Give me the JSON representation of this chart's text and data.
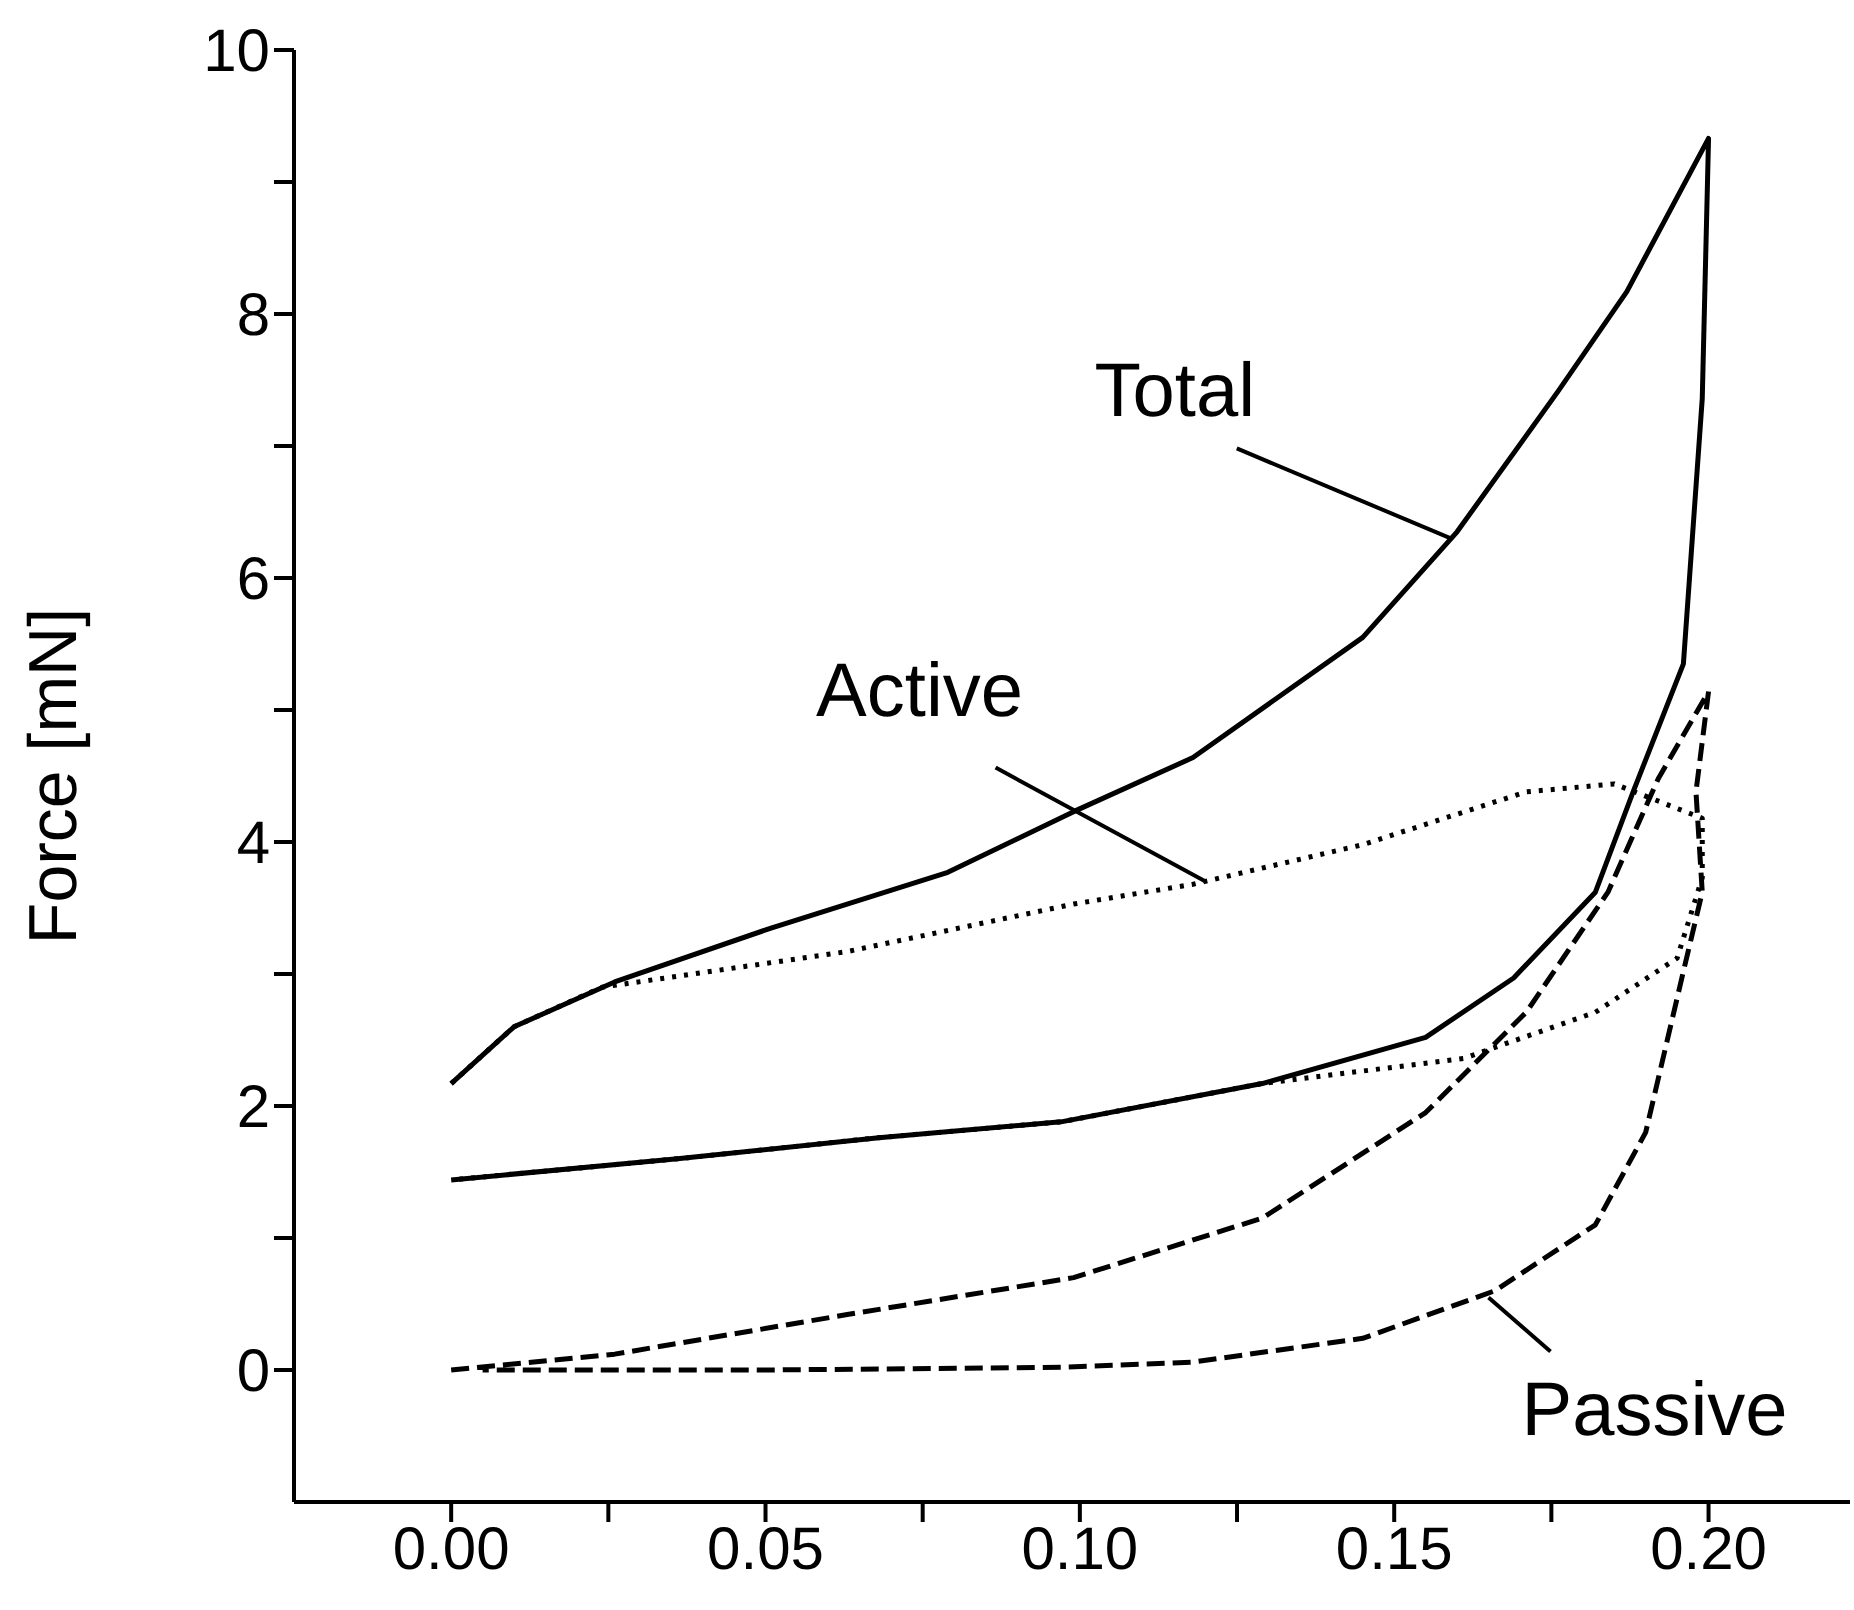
{
  "chart_data": {
    "type": "line",
    "ylabel": "Force [mN]",
    "xlim": [
      -0.025,
      0.2225
    ],
    "xticks": [
      {
        "value": 0,
        "label": "0.00"
      },
      {
        "value": 0.025,
        "label": null
      },
      {
        "value": 0.05,
        "label": "0.05"
      },
      {
        "value": 0.075,
        "label": null
      },
      {
        "value": 0.1,
        "label": "0.10"
      },
      {
        "value": 0.125,
        "label": null
      },
      {
        "value": 0.15,
        "label": "0.15"
      },
      {
        "value": 0.175,
        "label": null
      },
      {
        "value": 0.2,
        "label": "0.20"
      }
    ],
    "ylim": [
      -1,
      10
    ],
    "yticks": [
      0,
      {
        "value": 1,
        "label": null
      },
      2,
      {
        "value": 3,
        "label": null
      },
      4,
      {
        "value": 5,
        "label": null
      },
      6,
      {
        "value": 7,
        "label": null
      },
      8,
      {
        "value": 9,
        "label": null
      },
      10
    ],
    "grid": false,
    "legend": false,
    "marker": "none",
    "series": [
      {
        "color": "#000000",
        "line_style": "solid",
        "x": [
          0,
          0.01,
          0.026,
          0.051,
          0.079,
          0.099,
          0.118,
          0.145,
          0.16,
          0.176,
          0.187,
          0.2,
          0.199,
          0.196,
          0.188,
          0.182,
          0.169,
          0.155,
          0.129,
          0.097,
          0.068,
          0.036,
          0
        ],
        "values": [
          2.17,
          2.6,
          2.94,
          3.35,
          3.77,
          4.23,
          4.64,
          5.55,
          6.35,
          7.41,
          8.17,
          9.33,
          7.36,
          5.35,
          4.38,
          3.62,
          2.97,
          2.52,
          2.17,
          1.88,
          1.76,
          1.6,
          1.44
        ]
      },
      {
        "color": "#000000",
        "line_style": "dotted",
        "x": [
          0,
          0.01,
          0.024,
          0.063,
          0.099,
          0.118,
          0.145,
          0.171,
          0.185,
          0.199,
          0.199,
          0.195,
          0.182,
          0.161,
          0.129,
          0.097,
          0.068,
          0.036,
          0
        ],
        "values": [
          2.17,
          2.6,
          2.9,
          3.17,
          3.53,
          3.68,
          3.98,
          4.38,
          4.44,
          4.18,
          3.73,
          3.12,
          2.71,
          2.36,
          2.17,
          1.88,
          1.76,
          1.6,
          1.44
        ]
      },
      {
        "color": "#000000",
        "line_style": "dashed",
        "x": [
          0,
          0.026,
          0.063,
          0.099,
          0.129,
          0.155,
          0.171,
          0.184,
          0.192,
          0.2,
          0.198,
          0.199,
          0.196,
          0.19,
          0.182,
          0.166,
          0.145,
          0.118,
          0.097,
          0.05,
          0.005
        ],
        "values": [
          0,
          0.12,
          0.42,
          0.7,
          1.15,
          1.95,
          2.71,
          3.62,
          4.48,
          5.14,
          4.38,
          3.62,
          3.02,
          1.8,
          1.1,
          0.6,
          0.24,
          0.06,
          0.02,
          0,
          0
        ]
      }
    ],
    "annotations": [
      {
        "text": "Total",
        "x": 0.159,
        "y": 6.3
      },
      {
        "text": "Active",
        "x": 0.12,
        "y": 3.7
      },
      {
        "text": "Passive",
        "x": 0.165,
        "y": 0.55
      }
    ]
  }
}
